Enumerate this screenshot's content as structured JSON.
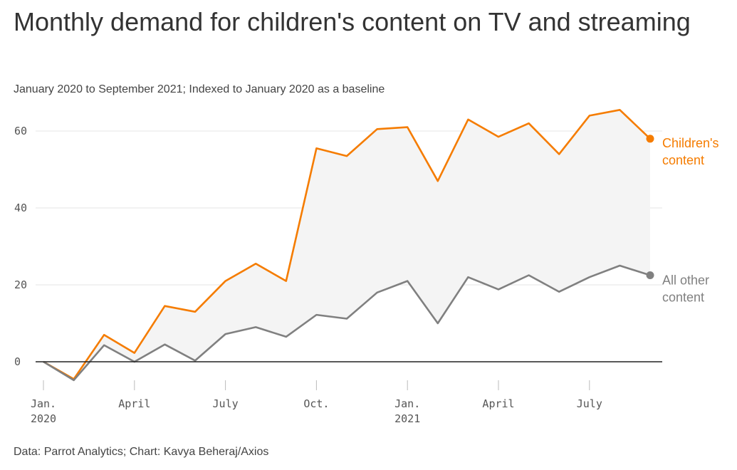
{
  "title": "Monthly demand for children's content on TV and streaming",
  "subtitle": "January 2020 to September 2021;  Indexed to January 2020 as a baseline",
  "source": "Data: Parrot Analytics; Chart: Kavya Beheraj/Axios",
  "colors": {
    "children": "#f57c00",
    "other": "#808080",
    "fill": "#f4f4f4",
    "grid": "#e6e6e6",
    "zero": "#222222"
  },
  "chart_data": {
    "type": "line",
    "x": [
      "2020-01",
      "2020-02",
      "2020-03",
      "2020-04",
      "2020-05",
      "2020-06",
      "2020-07",
      "2020-08",
      "2020-09",
      "2020-10",
      "2020-11",
      "2020-12",
      "2021-01",
      "2021-02",
      "2021-03",
      "2021-04",
      "2021-05",
      "2021-06",
      "2021-07",
      "2021-08",
      "2021-09"
    ],
    "series": [
      {
        "name": "Children's content",
        "label_lines": [
          "Children's",
          "content"
        ],
        "values": [
          0,
          -4.5,
          7,
          2.3,
          14.5,
          13,
          21,
          25.5,
          21,
          55.5,
          53.5,
          60.5,
          61,
          47,
          63,
          58.5,
          62,
          54,
          64,
          65.5,
          58
        ]
      },
      {
        "name": "All other content",
        "label_lines": [
          "All other",
          "content"
        ],
        "values": [
          0,
          -4.8,
          4.3,
          0,
          4.5,
          0.3,
          7.2,
          9,
          6.5,
          12.2,
          11.2,
          18,
          21,
          10,
          22,
          18.8,
          22.5,
          18.2,
          22,
          25,
          22.5
        ]
      }
    ],
    "yticks": [
      0,
      20,
      40,
      60
    ],
    "ylim": [
      -5,
      67
    ],
    "xticks": [
      {
        "x": "2020-01",
        "lines": [
          "Jan.",
          "2020"
        ]
      },
      {
        "x": "2020-04",
        "lines": [
          "April"
        ]
      },
      {
        "x": "2020-07",
        "lines": [
          "July"
        ]
      },
      {
        "x": "2020-10",
        "lines": [
          "Oct."
        ]
      },
      {
        "x": "2021-01",
        "lines": [
          "Jan.",
          "2021"
        ]
      },
      {
        "x": "2021-04",
        "lines": [
          "April"
        ]
      },
      {
        "x": "2021-07",
        "lines": [
          "July"
        ]
      }
    ],
    "grid": true,
    "shaded_between_series": true
  }
}
